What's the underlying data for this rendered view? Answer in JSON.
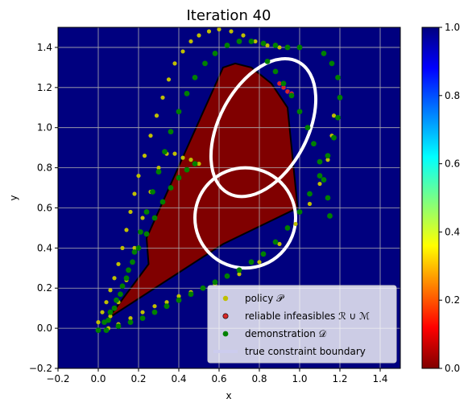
{
  "chart_data": {
    "type": "scatter",
    "title": "Iteration 40",
    "xlabel": "x",
    "ylabel": "y",
    "xlim": [
      -0.2,
      1.5
    ],
    "ylim": [
      -0.2,
      1.5
    ],
    "xticks": [
      "−0.2",
      "0.0",
      "0.2",
      "0.4",
      "0.6",
      "0.8",
      "1.0",
      "1.2",
      "1.4"
    ],
    "xtick_values": [
      -0.2,
      0.0,
      0.2,
      0.4,
      0.6,
      0.8,
      1.0,
      1.2,
      1.4
    ],
    "yticks": [
      "−0.2",
      "0.0",
      "0.2",
      "0.4",
      "0.6",
      "0.8",
      "1.0",
      "1.2",
      "1.4"
    ],
    "ytick_values": [
      -0.2,
      0.0,
      0.2,
      0.4,
      0.6,
      0.8,
      1.0,
      1.2,
      1.4
    ],
    "grid": true,
    "legend_position": "lower-right",
    "background_color": "#00007f",
    "colorbar": {
      "colormap": "jet",
      "range": [
        0.0,
        1.0
      ],
      "ticks": [
        "0.0",
        "0.2",
        "0.4",
        "0.6",
        "0.8",
        "1.0"
      ],
      "tick_values": [
        0.0,
        0.2,
        0.4,
        0.6,
        0.8,
        1.0
      ]
    },
    "infeasible_region": {
      "color": "#800000",
      "polygon": [
        [
          0.05,
          0.05
        ],
        [
          0.25,
          0.32
        ],
        [
          0.24,
          0.45
        ],
        [
          0.62,
          1.3
        ],
        [
          0.68,
          1.32
        ],
        [
          0.76,
          1.3
        ],
        [
          0.86,
          1.22
        ],
        [
          0.94,
          1.1
        ],
        [
          0.99,
          0.6
        ],
        [
          0.62,
          0.42
        ]
      ]
    },
    "series": [
      {
        "name": "policy 𝒫",
        "color": "#bfbf00",
        "points": [
          [
            0.0,
            0.03
          ],
          [
            0.02,
            0.08
          ],
          [
            0.04,
            0.13
          ],
          [
            0.06,
            0.19
          ],
          [
            0.08,
            0.25
          ],
          [
            0.1,
            0.32
          ],
          [
            0.12,
            0.4
          ],
          [
            0.14,
            0.49
          ],
          [
            0.16,
            0.58
          ],
          [
            0.18,
            0.67
          ],
          [
            0.2,
            0.76
          ],
          [
            0.23,
            0.86
          ],
          [
            0.26,
            0.96
          ],
          [
            0.29,
            1.06
          ],
          [
            0.32,
            1.15
          ],
          [
            0.35,
            1.24
          ],
          [
            0.38,
            1.32
          ],
          [
            0.42,
            1.38
          ],
          [
            0.46,
            1.43
          ],
          [
            0.5,
            1.46
          ],
          [
            0.55,
            1.48
          ],
          [
            0.6,
            1.49
          ],
          [
            0.66,
            1.48
          ],
          [
            0.72,
            1.46
          ],
          [
            0.78,
            1.43
          ],
          [
            0.84,
            1.41
          ],
          [
            0.9,
            1.4
          ],
          [
            0.06,
            0.06
          ],
          [
            0.1,
            0.13
          ],
          [
            0.14,
            0.24
          ],
          [
            0.18,
            0.4
          ],
          [
            0.22,
            0.55
          ],
          [
            0.26,
            0.68
          ],
          [
            0.3,
            0.8
          ],
          [
            0.34,
            0.87
          ],
          [
            0.38,
            0.87
          ],
          [
            0.42,
            0.85
          ],
          [
            0.46,
            0.84
          ],
          [
            0.5,
            0.82
          ],
          [
            0.05,
            0.0
          ],
          [
            0.1,
            0.02
          ],
          [
            0.16,
            0.05
          ],
          [
            0.22,
            0.08
          ],
          [
            0.28,
            0.11
          ],
          [
            0.34,
            0.13
          ],
          [
            0.4,
            0.16
          ],
          [
            0.46,
            0.18
          ],
          [
            0.52,
            0.2
          ],
          [
            0.58,
            0.22
          ],
          [
            0.7,
            0.27
          ],
          [
            0.8,
            0.33
          ],
          [
            0.9,
            0.42
          ],
          [
            0.98,
            0.52
          ],
          [
            1.05,
            0.62
          ],
          [
            1.1,
            0.72
          ],
          [
            1.14,
            0.84
          ],
          [
            1.16,
            0.96
          ],
          [
            1.17,
            1.06
          ]
        ]
      },
      {
        "name": "reliable infeasibles ℛ ∪ ℳ",
        "color": "#d62728",
        "points": [
          [
            0.9,
            1.22
          ],
          [
            0.92,
            1.2
          ],
          [
            0.94,
            1.18
          ],
          [
            0.96,
            1.17
          ]
        ]
      },
      {
        "name": "demonstration 𝒟",
        "color": "#008000",
        "points": [
          [
            0.0,
            -0.01
          ],
          [
            0.03,
            0.03
          ],
          [
            0.06,
            0.08
          ],
          [
            0.09,
            0.14
          ],
          [
            0.12,
            0.21
          ],
          [
            0.15,
            0.29
          ],
          [
            0.18,
            0.38
          ],
          [
            0.21,
            0.48
          ],
          [
            0.24,
            0.58
          ],
          [
            0.27,
            0.68
          ],
          [
            0.3,
            0.78
          ],
          [
            0.33,
            0.88
          ],
          [
            0.36,
            0.98
          ],
          [
            0.4,
            1.08
          ],
          [
            0.44,
            1.17
          ],
          [
            0.48,
            1.25
          ],
          [
            0.53,
            1.32
          ],
          [
            0.58,
            1.37
          ],
          [
            0.64,
            1.41
          ],
          [
            0.7,
            1.43
          ],
          [
            0.76,
            1.43
          ],
          [
            0.82,
            1.42
          ],
          [
            0.88,
            1.41
          ],
          [
            0.94,
            1.4
          ],
          [
            1.0,
            1.4
          ],
          [
            0.05,
            0.04
          ],
          [
            0.08,
            0.1
          ],
          [
            0.11,
            0.17
          ],
          [
            0.14,
            0.25
          ],
          [
            0.17,
            0.33
          ],
          [
            0.2,
            0.4
          ],
          [
            0.24,
            0.47
          ],
          [
            0.28,
            0.55
          ],
          [
            0.32,
            0.63
          ],
          [
            0.36,
            0.7
          ],
          [
            0.4,
            0.75
          ],
          [
            0.44,
            0.79
          ],
          [
            0.48,
            0.82
          ],
          [
            0.04,
            -0.01
          ],
          [
            0.1,
            0.01
          ],
          [
            0.16,
            0.03
          ],
          [
            0.22,
            0.05
          ],
          [
            0.28,
            0.08
          ],
          [
            0.34,
            0.11
          ],
          [
            0.4,
            0.14
          ],
          [
            0.46,
            0.17
          ],
          [
            0.52,
            0.2
          ],
          [
            0.58,
            0.23
          ],
          [
            0.64,
            0.26
          ],
          [
            0.7,
            0.29
          ],
          [
            0.76,
            0.33
          ],
          [
            0.82,
            0.37
          ],
          [
            0.88,
            0.43
          ],
          [
            0.94,
            0.5
          ],
          [
            1.0,
            0.58
          ],
          [
            1.05,
            0.67
          ],
          [
            1.1,
            0.76
          ],
          [
            1.14,
            0.86
          ],
          [
            1.17,
            0.95
          ],
          [
            1.19,
            1.05
          ],
          [
            1.2,
            1.15
          ],
          [
            1.19,
            1.25
          ],
          [
            1.16,
            1.32
          ],
          [
            1.12,
            1.37
          ],
          [
            0.84,
            1.33
          ],
          [
            0.88,
            1.28
          ],
          [
            0.92,
            1.22
          ],
          [
            0.96,
            1.16
          ],
          [
            1.0,
            1.08
          ],
          [
            1.04,
            1.0
          ],
          [
            1.07,
            0.92
          ],
          [
            1.1,
            0.83
          ],
          [
            1.12,
            0.74
          ],
          [
            1.14,
            0.65
          ],
          [
            1.15,
            0.56
          ]
        ]
      }
    ],
    "constraint_boundary": {
      "name": "true constraint boundary",
      "color": "#ffffff",
      "ellipses": [
        {
          "cx": 0.82,
          "cy": 1.0,
          "rx": 0.37,
          "ry": 0.22,
          "angle_deg": 62
        },
        {
          "cx": 0.73,
          "cy": 0.55,
          "rx": 0.25,
          "ry": 0.25,
          "angle_deg": 0
        }
      ]
    },
    "legend": [
      {
        "label": "policy 𝒫",
        "marker": "dot",
        "color": "#bfbf00"
      },
      {
        "label": "reliable infeasibles ℛ ∪ ℳ",
        "marker": "dot",
        "color": "#d62728"
      },
      {
        "label": "demonstration 𝒟",
        "marker": "dot",
        "color": "#008000"
      },
      {
        "label": "true constraint boundary",
        "marker": "line",
        "color": "#ffffff"
      }
    ]
  }
}
